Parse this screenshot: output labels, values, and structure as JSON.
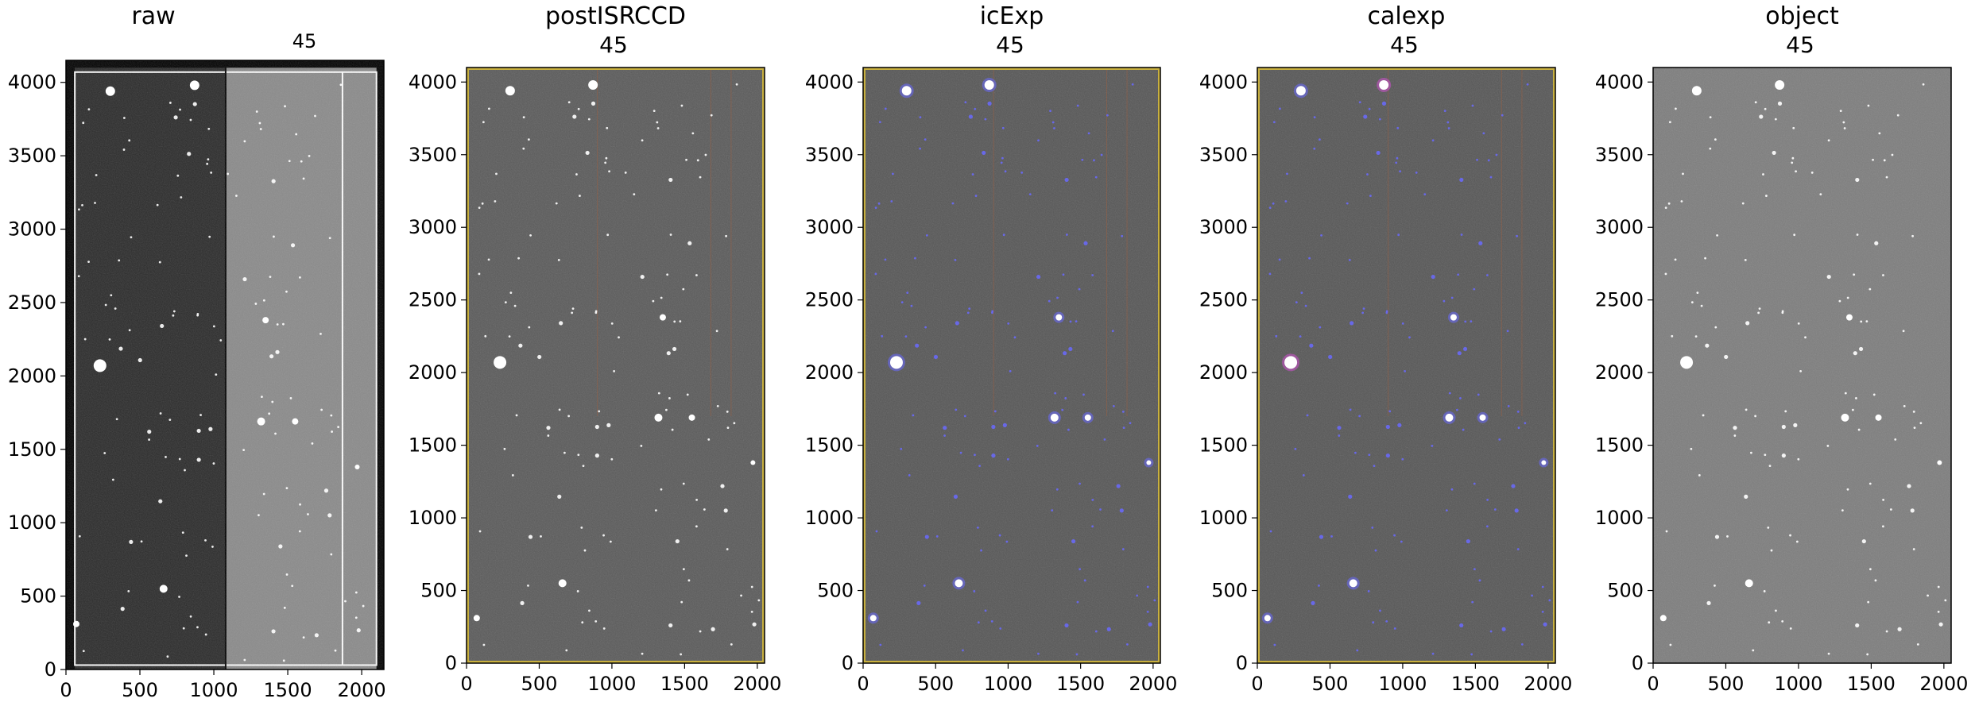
{
  "chart_data": [
    {
      "type": "image",
      "title": "raw",
      "annotation": "45",
      "xlim": [
        0,
        2150
      ],
      "ylim": [
        0,
        4150
      ],
      "xticks": [
        0,
        500,
        1000,
        1500,
        2000
      ],
      "yticks": [
        0,
        500,
        1000,
        1500,
        2000,
        2500,
        3000,
        3500,
        4000
      ],
      "grid": false,
      "background": "#2a2a2a",
      "overlay": "none"
    },
    {
      "type": "image",
      "title": "postISRCCD",
      "annotation": "45",
      "xlim": [
        0,
        2050
      ],
      "ylim": [
        0,
        4100
      ],
      "xticks": [
        0,
        500,
        1000,
        1500,
        2000
      ],
      "yticks": [
        0,
        500,
        1000,
        1500,
        2000,
        2500,
        3000,
        3500,
        4000
      ],
      "grid": false,
      "background": "#5a5a5a",
      "overlay": "edge-mask"
    },
    {
      "type": "image",
      "title": "icExp",
      "annotation": "45",
      "xlim": [
        0,
        2050
      ],
      "ylim": [
        0,
        4100
      ],
      "xticks": [
        0,
        500,
        1000,
        1500,
        2000
      ],
      "yticks": [
        0,
        500,
        1000,
        1500,
        2000,
        2500,
        3000,
        3500,
        4000
      ],
      "grid": false,
      "background": "#565656",
      "overlay": "detected"
    },
    {
      "type": "image",
      "title": "calexp",
      "annotation": "45",
      "xlim": [
        0,
        2050
      ],
      "ylim": [
        0,
        4100
      ],
      "xticks": [
        0,
        500,
        1000,
        1500,
        2000
      ],
      "yticks": [
        0,
        500,
        1000,
        1500,
        2000,
        2500,
        3000,
        3500,
        4000
      ],
      "grid": false,
      "background": "#565656",
      "overlay": "detected-saturated"
    },
    {
      "type": "image",
      "title": "object",
      "annotation": "45",
      "xlim": [
        0,
        2050
      ],
      "ylim": [
        0,
        4100
      ],
      "xticks": [
        0,
        500,
        1000,
        1500,
        2000
      ],
      "yticks": [
        0,
        500,
        1000,
        1500,
        2000,
        2500,
        3000,
        3500,
        4000
      ],
      "grid": false,
      "background": "#7d7d7d",
      "overlay": "none"
    }
  ],
  "colors": {
    "mask_edge": "#c8b040",
    "detected": "#6a6aff",
    "saturated": "#d050d0",
    "bad_column": "#a06040"
  }
}
